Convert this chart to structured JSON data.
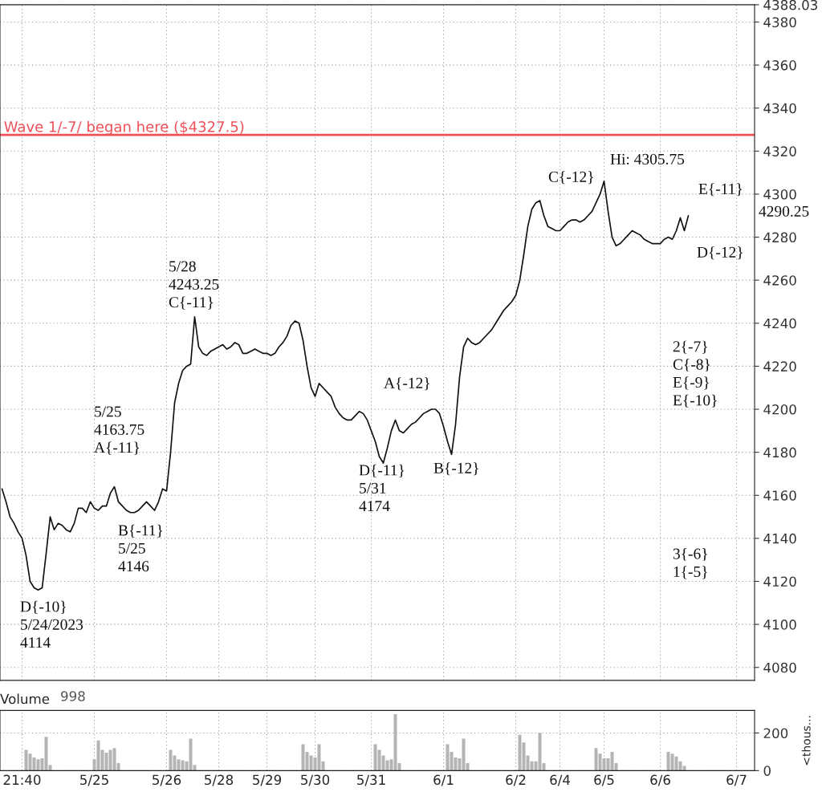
{
  "chart_data": [
    {
      "type": "line",
      "tick_labels": "y",
      "grid": true,
      "legend": false,
      "marker": "none",
      "line_style": "solid",
      "categories": [
        null,
        null,
        null,
        null,
        null,
        null,
        null,
        null,
        null,
        null,
        null,
        null,
        null,
        null,
        null,
        null,
        null,
        null,
        null,
        null,
        null,
        null,
        null,
        null,
        null,
        null,
        null,
        null,
        null,
        null,
        null,
        null,
        null,
        null,
        null,
        null,
        null,
        null,
        null,
        null,
        null,
        null,
        null,
        null,
        null,
        null,
        null,
        null,
        null,
        null,
        null,
        null,
        null,
        null,
        null,
        null,
        null,
        null,
        null,
        null,
        null,
        null,
        null,
        null,
        null,
        null,
        null,
        null,
        null,
        null,
        null,
        null,
        null,
        null,
        null,
        null,
        null,
        null,
        null,
        null,
        null,
        null,
        null,
        null,
        null,
        null,
        null,
        null,
        null,
        null,
        null,
        null,
        null,
        null,
        null,
        null,
        null,
        null,
        null,
        null,
        null,
        null,
        null,
        null,
        null,
        null,
        null,
        null,
        null,
        null,
        null,
        null,
        null,
        null,
        null,
        null,
        null,
        null,
        null,
        null,
        null,
        null,
        null,
        null,
        null,
        null,
        null,
        null,
        null,
        null,
        null,
        null,
        null,
        null,
        null,
        null,
        null,
        null,
        null,
        null,
        null,
        null,
        null,
        null,
        null,
        null,
        null,
        null,
        null,
        null,
        null,
        null,
        null,
        null,
        null,
        null,
        null,
        null,
        null,
        null,
        null,
        null,
        null,
        null,
        null,
        null,
        null,
        null,
        null,
        null,
        null,
        null,
        null,
        null,
        null,
        null,
        null,
        null,
        null,
        null,
        null,
        null,
        null,
        null,
        null,
        null,
        null,
        null
      ],
      "ylim": [
        4074,
        4388.03
      ],
      "yticks": [
        4080,
        4100,
        4120,
        4140,
        4160,
        4180,
        4200,
        4220,
        4240,
        4260,
        4280,
        4300,
        4320,
        4340,
        4360,
        4380,
        {
          "value": 4388.03,
          "label": "4388.03"
        }
      ],
      "ref_lines": [
        {
          "axis": "y",
          "value": 4327.5,
          "label": "Wave 1/-7/ began here ($4327.5)",
          "color": "#f0505a"
        }
      ],
      "series": [
        {
          "color": "#111111",
          "values": [
            4163,
            4157,
            4150,
            4147,
            4143,
            4140,
            4132,
            4120,
            4117,
            4116,
            4117,
            4133,
            4150,
            4144,
            4147,
            4146,
            4144,
            4143,
            4147,
            4154,
            4154,
            4152,
            4157,
            4154,
            4153,
            4155,
            4155,
            4161,
            4164,
            4157,
            4155,
            4153,
            4152,
            4152,
            4153,
            4155,
            4157,
            4155,
            4153,
            4157,
            4163,
            4162,
            4180,
            4203,
            4212,
            4218,
            4220,
            4221,
            4243,
            4229,
            4226,
            4225,
            4227,
            4228,
            4229,
            4230,
            4228,
            4229,
            4231,
            4230,
            4226,
            4226,
            4227,
            4228,
            4227,
            4226,
            4226,
            4225,
            4226,
            4229,
            4231,
            4234,
            4239,
            4241,
            4240,
            4232,
            4220,
            4210,
            4206,
            4212,
            4210,
            4208,
            4206,
            4201,
            4198,
            4196,
            4195,
            4195,
            4197,
            4199,
            4198,
            4195,
            4190,
            4185,
            4178,
            4175,
            4182,
            4190,
            4195,
            4190,
            4189,
            4191,
            4193,
            4194,
            4196,
            4198,
            4199,
            4200,
            4200,
            4198,
            4192,
            4185,
            4179,
            4193,
            4215,
            4229,
            4233,
            4231,
            4230,
            4231,
            4233,
            4235,
            4237,
            4240,
            4243,
            4246,
            4248,
            4250,
            4253,
            4260,
            4272,
            4285,
            4293,
            4296,
            4297,
            4290,
            4285,
            4284,
            4283,
            4283,
            4285,
            4287,
            4288,
            4288,
            4287,
            4288,
            4290,
            4292,
            4296,
            4300,
            4306,
            4292,
            4280,
            4276,
            4277,
            4279,
            4281,
            4283,
            4282,
            4281,
            4279,
            4278,
            4277,
            4277,
            4277,
            4279,
            4280,
            4279,
            4283,
            4289,
            4283,
            4290,
            null,
            null,
            null,
            null,
            null,
            null,
            null,
            null,
            null,
            null,
            null,
            null,
            null,
            null,
            null,
            null
          ]
        }
      ],
      "annotations": [
        "D{-10}\n5/24/2023\n4114",
        "5/25\n4163.75\nA{-11}",
        "B{-11}\n5/25\n4146",
        "5/28\n4243.25\nC{-11}",
        "D{-11}\n5/31\n4174",
        "A{-12}",
        "B{-12}",
        "C{-12}",
        "Hi: 4305.75",
        "E{-11}",
        "D{-12}",
        "2{-7}\nC{-8}\nE{-9}\nE{-10}",
        "3{-6}\n1{-5}",
        "4290.25"
      ]
    },
    {
      "type": "bar",
      "title": "Volume",
      "ylabel": "<thous...",
      "grid": true,
      "legend": false,
      "categories": [
        null,
        null,
        null,
        null,
        null,
        "21:40",
        null,
        null,
        null,
        null,
        null,
        null,
        null,
        null,
        null,
        null,
        null,
        null,
        null,
        null,
        null,
        null,
        null,
        "5/25",
        null,
        null,
        null,
        null,
        null,
        null,
        null,
        null,
        null,
        null,
        null,
        null,
        null,
        null,
        null,
        null,
        null,
        "5/26",
        null,
        null,
        null,
        null,
        null,
        null,
        null,
        null,
        null,
        null,
        null,
        null,
        "5/28",
        null,
        null,
        null,
        null,
        null,
        null,
        null,
        null,
        null,
        null,
        null,
        "5/29",
        null,
        null,
        null,
        null,
        null,
        null,
        null,
        null,
        null,
        null,
        null,
        "5/30",
        null,
        null,
        null,
        null,
        null,
        null,
        null,
        null,
        null,
        null,
        null,
        null,
        null,
        "5/31",
        null,
        null,
        null,
        null,
        null,
        null,
        null,
        null,
        null,
        null,
        null,
        null,
        null,
        null,
        null,
        null,
        null,
        "6/1",
        null,
        null,
        null,
        null,
        null,
        null,
        null,
        null,
        null,
        null,
        null,
        null,
        null,
        null,
        null,
        null,
        null,
        "6/2",
        null,
        null,
        null,
        null,
        null,
        null,
        null,
        null,
        null,
        null,
        "6/4",
        null,
        null,
        null,
        null,
        null,
        null,
        null,
        null,
        null,
        null,
        "6/5",
        null,
        null,
        null,
        null,
        null,
        null,
        null,
        null,
        null,
        null,
        null,
        null,
        null,
        "6/6",
        null,
        null,
        null,
        null,
        null,
        null,
        null,
        null,
        null,
        null,
        null,
        null,
        null,
        null,
        null,
        null,
        null,
        null,
        "6/7",
        null,
        null,
        null,
        null
      ],
      "ylim": [
        0,
        320
      ],
      "yticks": [
        0,
        200
      ],
      "annotations": [
        "998"
      ],
      "series": [
        {
          "color": "#b4b4b4",
          "values": [
            null,
            null,
            null,
            null,
            null,
            null,
            110,
            90,
            70,
            60,
            65,
            180,
            30,
            null,
            null,
            null,
            null,
            null,
            null,
            null,
            null,
            null,
            null,
            60,
            160,
            110,
            95,
            110,
            120,
            40,
            null,
            null,
            null,
            null,
            null,
            null,
            null,
            null,
            null,
            null,
            null,
            null,
            110,
            80,
            60,
            55,
            50,
            170,
            30,
            null,
            null,
            null,
            null,
            null,
            null,
            null,
            null,
            null,
            null,
            null,
            null,
            null,
            null,
            null,
            null,
            null,
            null,
            null,
            null,
            null,
            null,
            null,
            null,
            null,
            null,
            140,
            100,
            80,
            70,
            140,
            50,
            null,
            null,
            null,
            null,
            null,
            null,
            null,
            null,
            null,
            null,
            null,
            null,
            140,
            110,
            80,
            55,
            60,
            300,
            40,
            null,
            null,
            null,
            null,
            null,
            null,
            null,
            null,
            null,
            null,
            null,
            140,
            100,
            70,
            65,
            170,
            40,
            null,
            null,
            null,
            null,
            null,
            null,
            null,
            null,
            null,
            null,
            null,
            null,
            190,
            150,
            80,
            50,
            50,
            200,
            40,
            null,
            null,
            null,
            null,
            null,
            null,
            null,
            null,
            null,
            null,
            null,
            null,
            120,
            90,
            65,
            65,
            100,
            40,
            null,
            null,
            null,
            null,
            null,
            null,
            null,
            null,
            null,
            null,
            null,
            null,
            100,
            90,
            75,
            50,
            25,
            null,
            null,
            null,
            null,
            null,
            null,
            null,
            null,
            null,
            null,
            null,
            null,
            null,
            null,
            null,
            null,
            null
          ]
        }
      ]
    }
  ]
}
